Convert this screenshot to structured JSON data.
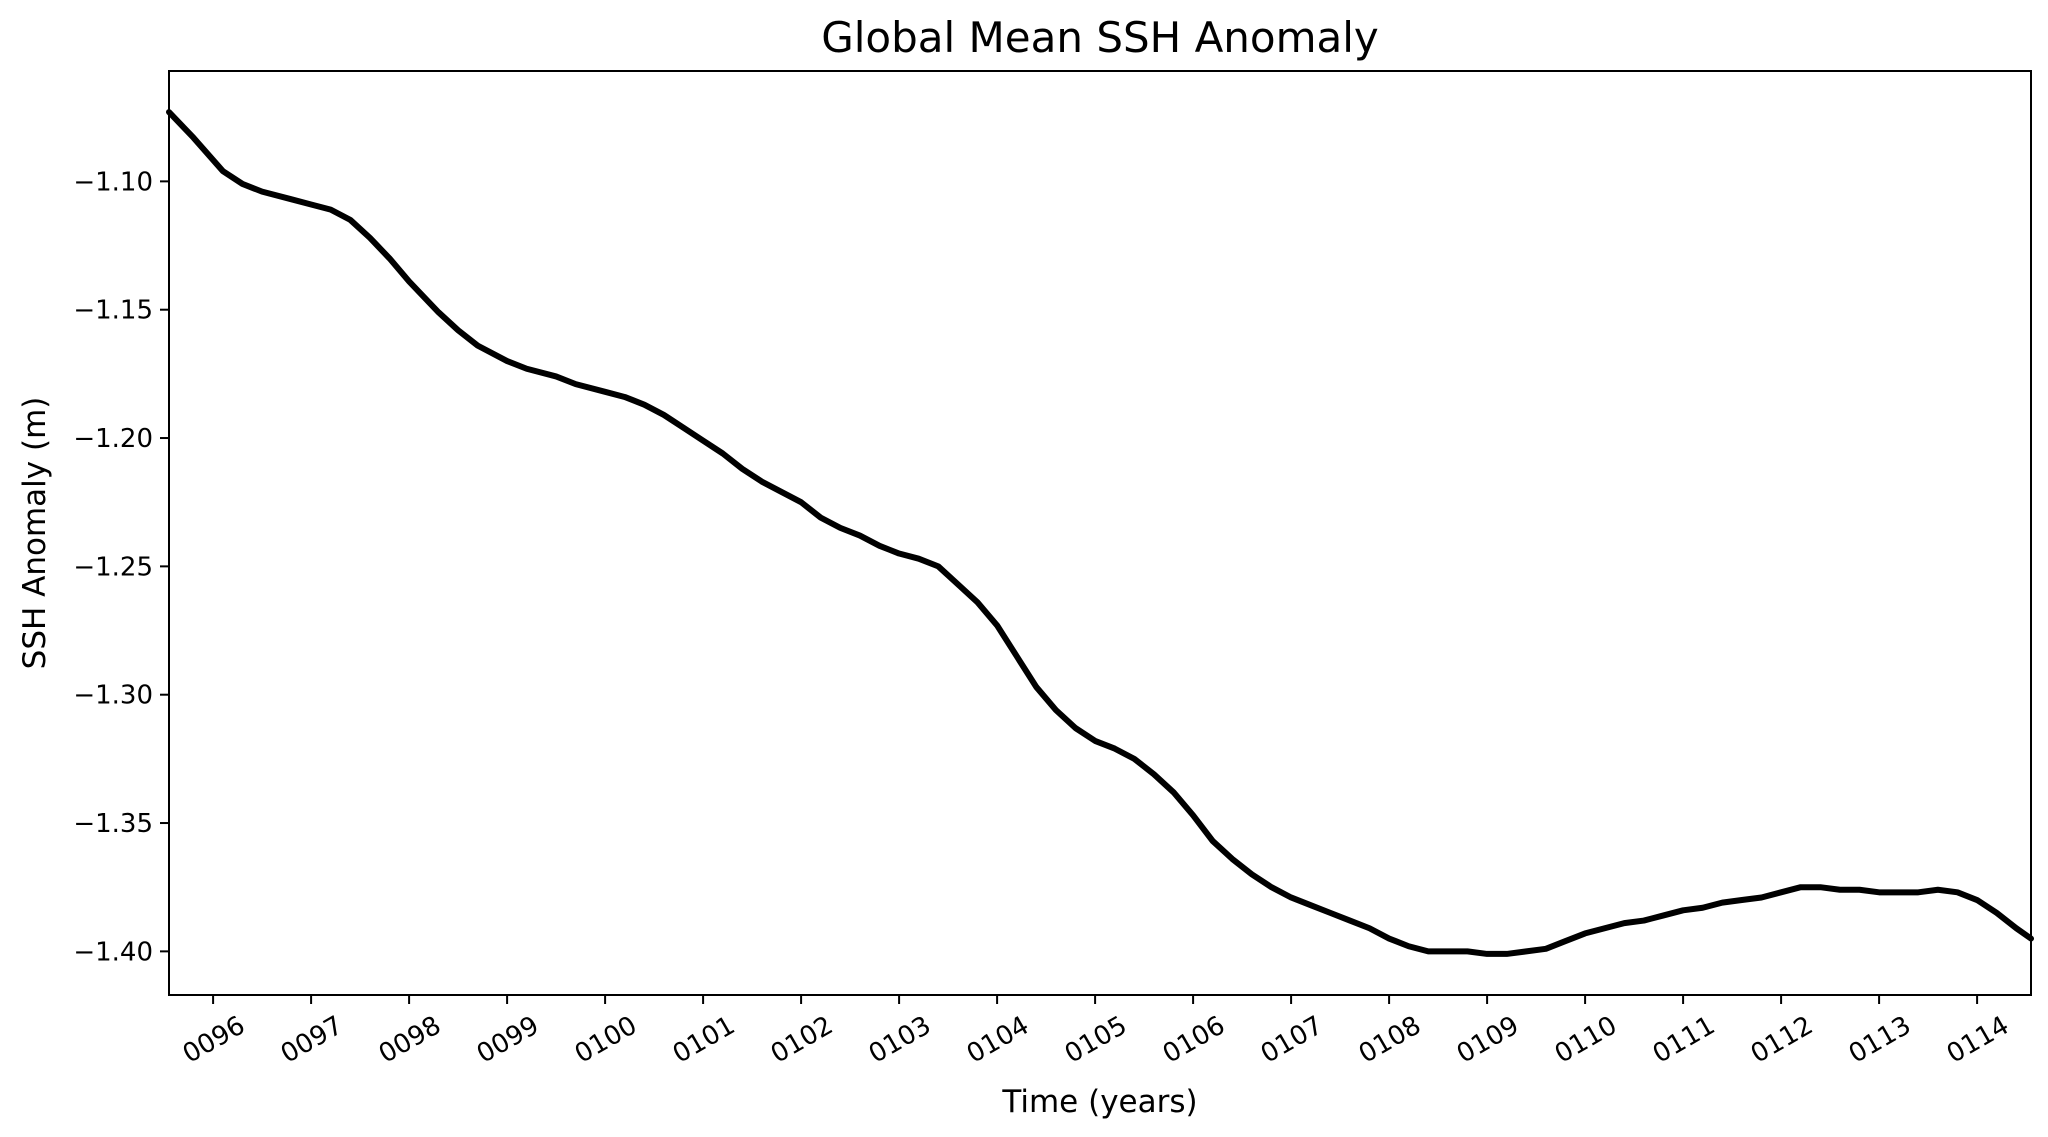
{
  "chart_data": {
    "type": "line",
    "title": "Global Mean SSH Anomaly",
    "xlabel": "Time (years)",
    "ylabel": "SSH Anomaly (m)",
    "xlim": [
      95.55,
      114.55
    ],
    "ylim": [
      -1.417,
      -1.057
    ],
    "grid": false,
    "legend": "none",
    "line_color": "#000000",
    "x_ticks": [
      {
        "value": 96,
        "label": "0096"
      },
      {
        "value": 97,
        "label": "0097"
      },
      {
        "value": 98,
        "label": "0098"
      },
      {
        "value": 99,
        "label": "0099"
      },
      {
        "value": 100,
        "label": "0100"
      },
      {
        "value": 101,
        "label": "0101"
      },
      {
        "value": 102,
        "label": "0102"
      },
      {
        "value": 103,
        "label": "0103"
      },
      {
        "value": 104,
        "label": "0104"
      },
      {
        "value": 105,
        "label": "0105"
      },
      {
        "value": 106,
        "label": "0106"
      },
      {
        "value": 107,
        "label": "0107"
      },
      {
        "value": 108,
        "label": "0108"
      },
      {
        "value": 109,
        "label": "0109"
      },
      {
        "value": 110,
        "label": "0110"
      },
      {
        "value": 111,
        "label": "0111"
      },
      {
        "value": 112,
        "label": "0112"
      },
      {
        "value": 113,
        "label": "0113"
      },
      {
        "value": 114,
        "label": "0114"
      }
    ],
    "y_ticks": [
      {
        "value": -1.1,
        "label": "−1.10"
      },
      {
        "value": -1.15,
        "label": "−1.15"
      },
      {
        "value": -1.2,
        "label": "−1.20"
      },
      {
        "value": -1.25,
        "label": "−1.25"
      },
      {
        "value": -1.3,
        "label": "−1.30"
      },
      {
        "value": -1.35,
        "label": "−1.35"
      },
      {
        "value": -1.4,
        "label": "−1.40"
      }
    ],
    "series": [
      {
        "x": [
          95.55,
          95.8,
          96.1,
          96.3,
          96.5,
          96.8,
          97.0,
          97.2,
          97.4,
          97.6,
          97.8,
          98.0,
          98.3,
          98.5,
          98.7,
          99.0,
          99.2,
          99.5,
          99.7,
          100.0,
          100.2,
          100.4,
          100.6,
          100.8,
          101.0,
          101.2,
          101.4,
          101.6,
          101.8,
          102.0,
          102.2,
          102.4,
          102.6,
          102.8,
          103.0,
          103.2,
          103.4,
          103.6,
          103.8,
          104.0,
          104.2,
          104.4,
          104.6,
          104.8,
          105.0,
          105.2,
          105.4,
          105.6,
          105.8,
          106.0,
          106.2,
          106.4,
          106.6,
          106.8,
          107.0,
          107.2,
          107.4,
          107.6,
          107.8,
          108.0,
          108.2,
          108.4,
          108.6,
          108.8,
          109.0,
          109.2,
          109.4,
          109.6,
          109.8,
          110.0,
          110.2,
          110.4,
          110.6,
          110.8,
          111.0,
          111.2,
          111.4,
          111.6,
          111.8,
          112.0,
          112.2,
          112.4,
          112.6,
          112.8,
          113.0,
          113.2,
          113.4,
          113.6,
          113.8,
          114.0,
          114.2,
          114.4,
          114.55
        ],
        "y": [
          -1.073,
          -1.083,
          -1.096,
          -1.101,
          -1.104,
          -1.107,
          -1.109,
          -1.111,
          -1.115,
          -1.122,
          -1.13,
          -1.139,
          -1.151,
          -1.158,
          -1.164,
          -1.17,
          -1.173,
          -1.176,
          -1.179,
          -1.182,
          -1.184,
          -1.187,
          -1.191,
          -1.196,
          -1.201,
          -1.206,
          -1.212,
          -1.217,
          -1.221,
          -1.225,
          -1.231,
          -1.235,
          -1.238,
          -1.242,
          -1.245,
          -1.247,
          -1.25,
          -1.257,
          -1.264,
          -1.273,
          -1.285,
          -1.297,
          -1.306,
          -1.313,
          -1.318,
          -1.321,
          -1.325,
          -1.331,
          -1.338,
          -1.347,
          -1.357,
          -1.364,
          -1.37,
          -1.375,
          -1.379,
          -1.382,
          -1.385,
          -1.388,
          -1.391,
          -1.395,
          -1.398,
          -1.4,
          -1.4,
          -1.4,
          -1.401,
          -1.401,
          -1.4,
          -1.399,
          -1.396,
          -1.393,
          -1.391,
          -1.389,
          -1.388,
          -1.386,
          -1.384,
          -1.383,
          -1.381,
          -1.38,
          -1.379,
          -1.377,
          -1.375,
          -1.375,
          -1.376,
          -1.376,
          -1.377,
          -1.377,
          -1.377,
          -1.376,
          -1.377,
          -1.38,
          -1.385,
          -1.391,
          -1.395
        ]
      }
    ]
  }
}
